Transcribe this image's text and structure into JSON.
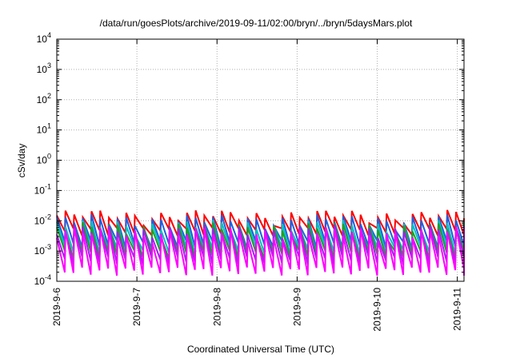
{
  "chart_data": {
    "type": "line",
    "title": "/data/run/goesPlots/archive/2019-09-11/02:00/bryn/../bryn/5daysMars.plot",
    "xlabel": "Coordinated Universal Time (UTC)",
    "ylabel": "cSv/day",
    "yscale": "log",
    "ylim": [
      0.0001,
      10000
    ],
    "xlim": [
      "2019-09-06",
      "2019-09-11 02:00"
    ],
    "grid": true,
    "x_ticks": [
      "2019-9-6",
      "2019-9-7",
      "2019-9-8",
      "2019-9-9",
      "2019-9-10",
      "2019-9-11"
    ],
    "y_ticks": [
      {
        "base": "10",
        "exp": "-4"
      },
      {
        "base": "10",
        "exp": "-3"
      },
      {
        "base": "10",
        "exp": "-2"
      },
      {
        "base": "10",
        "exp": "-1"
      },
      {
        "base": "10",
        "exp": "0"
      },
      {
        "base": "10",
        "exp": "1"
      },
      {
        "base": "10",
        "exp": "2"
      },
      {
        "base": "10",
        "exp": "3"
      },
      {
        "base": "10",
        "exp": "4"
      }
    ],
    "series_note_period_hours": 2.6,
    "series": [
      {
        "color": "#ff0000",
        "peak": 0.015,
        "trough": 0.0045
      },
      {
        "color": "#1f5fe0",
        "peak": 0.0105,
        "trough": 0.0017
      },
      {
        "color": "#00c0c0",
        "peak": 0.007,
        "trough": 0.0011
      },
      {
        "color": "#20a020",
        "peak": 0.0058,
        "trough": 0.0008
      },
      {
        "color": "#a020f0",
        "peak": 0.0048,
        "trough": 0.0005
      },
      {
        "color": "#ff00ff",
        "peak": 0.004,
        "trough": 0.00022
      }
    ]
  }
}
